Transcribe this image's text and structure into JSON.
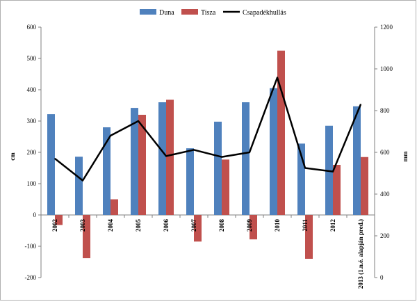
{
  "chart_data": {
    "type": "bar",
    "categories": [
      "2002",
      "2003",
      "2004",
      "2005",
      "2006",
      "2007",
      "2008",
      "2009",
      "2010",
      "2011",
      "2012",
      "2013 (1.n.é. alapján pred.)"
    ],
    "series": [
      {
        "name": "Duna",
        "axis": "left",
        "color": "#4f81bd",
        "values": [
          322,
          186,
          280,
          342,
          360,
          213,
          298,
          360,
          405,
          228,
          285,
          347
        ]
      },
      {
        "name": "Tisza",
        "axis": "left",
        "color": "#c0504d",
        "values": [
          -32,
          -138,
          50,
          320,
          368,
          -85,
          177,
          -78,
          525,
          -140,
          160,
          185
        ]
      },
      {
        "name": "Csapadékhullás",
        "axis": "right",
        "type": "line",
        "color": "#000000",
        "values": [
          570,
          465,
          680,
          750,
          582,
          612,
          578,
          600,
          958,
          525,
          508,
          830
        ]
      }
    ],
    "ylabel_left": "cm",
    "ylabel_right": "mm",
    "ylim_left": [
      -200,
      600
    ],
    "ylim_right": [
      0,
      1200
    ],
    "yticks_left": [
      "-200",
      "-100",
      "0",
      "100",
      "200",
      "300",
      "400",
      "500",
      "600"
    ],
    "yticks_right": [
      "0",
      "200",
      "400",
      "600",
      "800",
      "1000",
      "1200"
    ],
    "legend_position": "top",
    "grid": false
  }
}
